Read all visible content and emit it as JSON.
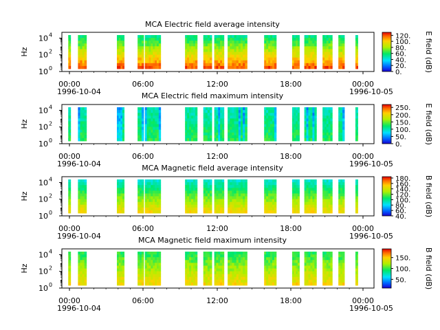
{
  "figure": {
    "date_start": "1996-10-04",
    "date_end": "1996-10-05"
  },
  "chart_data": [
    {
      "type": "heatmap",
      "title": "MCA  Electric field average intensity",
      "ylabel": "Hz",
      "ytick_exponents": [
        "0",
        "2",
        "4"
      ],
      "ytick_base": "10",
      "xticks": [
        "00:00",
        "06:00",
        "12:00",
        "18:00",
        "00:00"
      ],
      "x_range": [
        "1996-10-04 00:00",
        "1996-10-05 00:30"
      ],
      "y_scale": "log",
      "y_range_hz": [
        1,
        50000
      ],
      "colorbar": {
        "label": "E field (dB)",
        "ticks": [
          "0.",
          "20.",
          "40.",
          "60.",
          "80.",
          "100.",
          "120."
        ],
        "range": [
          0,
          130
        ],
        "colormap": "rainbow"
      },
      "data_intervals_hours": [
        [
          -0.1,
          0.1
        ],
        [
          0.7,
          1.4
        ],
        [
          3.9,
          4.5
        ],
        [
          5.6,
          6.1
        ],
        [
          6.2,
          7.5
        ],
        [
          9.5,
          10.5
        ],
        [
          11.0,
          11.7
        ],
        [
          11.9,
          12.7
        ],
        [
          13.0,
          14.6
        ],
        [
          16.0,
          17.0
        ],
        [
          18.3,
          18.9
        ],
        [
          19.3,
          20.3
        ],
        [
          20.8,
          21.6
        ],
        [
          22.1,
          22.6
        ],
        [
          23.5,
          23.7
        ]
      ]
    },
    {
      "type": "heatmap",
      "title": "MCA  Electric field maximum intensity",
      "ylabel": "Hz",
      "ytick_exponents": [
        "0",
        "2",
        "4"
      ],
      "ytick_base": "10",
      "xticks": [
        "00:00",
        "06:00",
        "12:00",
        "18:00",
        "00:00"
      ],
      "x_range": [
        "1996-10-04 00:00",
        "1996-10-05 00:30"
      ],
      "y_scale": "log",
      "y_range_hz": [
        1,
        50000
      ],
      "colorbar": {
        "label": "E field (dB)",
        "ticks": [
          "0.",
          "50.",
          "100.",
          "150.",
          "200.",
          "250."
        ],
        "range": [
          0,
          270
        ],
        "colormap": "rainbow"
      },
      "data_intervals_hours": [
        [
          -0.1,
          0.1
        ],
        [
          0.7,
          1.4
        ],
        [
          3.9,
          4.5
        ],
        [
          5.6,
          6.1
        ],
        [
          6.2,
          7.5
        ],
        [
          9.5,
          10.5
        ],
        [
          11.0,
          11.7
        ],
        [
          11.9,
          12.7
        ],
        [
          13.0,
          14.6
        ],
        [
          16.0,
          17.0
        ],
        [
          18.3,
          18.9
        ],
        [
          19.3,
          20.3
        ],
        [
          20.8,
          21.6
        ],
        [
          22.1,
          22.6
        ],
        [
          23.5,
          23.7
        ]
      ]
    },
    {
      "type": "heatmap",
      "title": "MCA  Magnetic field average intensity",
      "ylabel": "Hz",
      "ytick_exponents": [
        "0",
        "2",
        "4"
      ],
      "ytick_base": "10",
      "xticks": [
        "00:00",
        "06:00",
        "12:00",
        "18:00",
        "00:00"
      ],
      "x_range": [
        "1996-10-04 00:00",
        "1996-10-05 00:30"
      ],
      "y_scale": "log",
      "y_range_hz": [
        1,
        50000
      ],
      "colorbar": {
        "label": "B field (dB)",
        "ticks": [
          "40.",
          "60.",
          "80.",
          "100.",
          "120.",
          "140.",
          "160.",
          "180."
        ],
        "range": [
          40,
          185
        ],
        "colormap": "rainbow"
      },
      "data_intervals_hours": [
        [
          -0.1,
          0.1
        ],
        [
          0.7,
          1.4
        ],
        [
          3.9,
          4.5
        ],
        [
          5.6,
          6.1
        ],
        [
          6.2,
          7.5
        ],
        [
          9.5,
          10.5
        ],
        [
          11.0,
          11.7
        ],
        [
          11.9,
          12.7
        ],
        [
          13.0,
          14.6
        ],
        [
          16.0,
          17.0
        ],
        [
          18.3,
          18.9
        ],
        [
          19.3,
          20.3
        ],
        [
          20.8,
          21.6
        ],
        [
          22.1,
          22.6
        ],
        [
          23.5,
          23.7
        ]
      ]
    },
    {
      "type": "heatmap",
      "title": "MCA  Magnetic field maximum intensity",
      "ylabel": "Hz",
      "ytick_exponents": [
        "0",
        "2",
        "4"
      ],
      "ytick_base": "10",
      "xticks": [
        "00:00",
        "06:00",
        "12:00",
        "18:00",
        "00:00"
      ],
      "x_range": [
        "1996-10-04 00:00",
        "1996-10-05 00:30"
      ],
      "y_scale": "log",
      "y_range_hz": [
        1,
        50000
      ],
      "colorbar": {
        "label": "B field (dB)",
        "ticks": [
          "50.",
          "100.",
          "150."
        ],
        "range": [
          10,
          190
        ],
        "colormap": "rainbow"
      },
      "data_intervals_hours": [
        [
          -0.1,
          0.1
        ],
        [
          0.7,
          1.4
        ],
        [
          3.9,
          4.5
        ],
        [
          5.6,
          6.1
        ],
        [
          6.2,
          7.5
        ],
        [
          9.5,
          10.5
        ],
        [
          11.0,
          11.7
        ],
        [
          11.9,
          12.7
        ],
        [
          13.0,
          14.6
        ],
        [
          16.0,
          17.0
        ],
        [
          18.3,
          18.9
        ],
        [
          19.3,
          20.3
        ],
        [
          20.8,
          21.6
        ],
        [
          22.1,
          22.6
        ],
        [
          23.5,
          23.7
        ]
      ]
    }
  ]
}
